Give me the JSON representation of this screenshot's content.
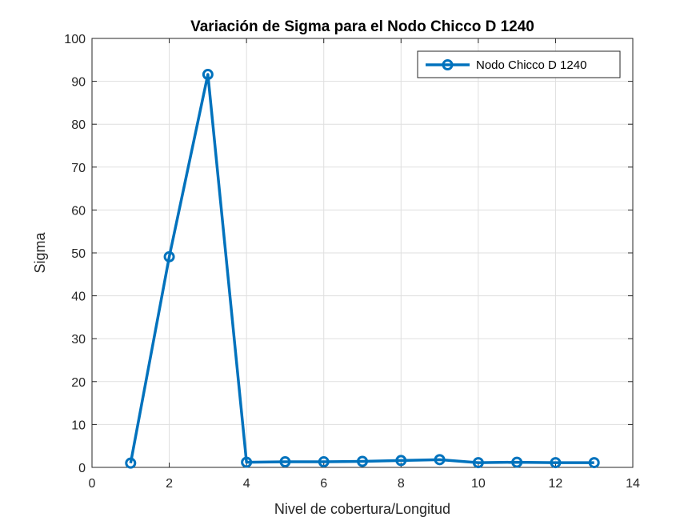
{
  "chart_data": {
    "type": "line",
    "title": "Variación de Sigma para el Nodo Chicco D 1240",
    "xlabel": "Nivel de cobertura/Longitud",
    "ylabel": "Sigma",
    "xlim": [
      0,
      14
    ],
    "ylim": [
      0,
      100
    ],
    "xticks": [
      0,
      2,
      4,
      6,
      8,
      10,
      12,
      14
    ],
    "yticks": [
      0,
      10,
      20,
      30,
      40,
      50,
      60,
      70,
      80,
      90,
      100
    ],
    "grid": true,
    "legend_position": "top-right",
    "series": [
      {
        "name": "Nodo Chicco D 1240",
        "color": "#0072BD",
        "marker": "circle",
        "x": [
          1,
          2,
          3,
          4,
          5,
          6,
          7,
          8,
          9,
          10,
          11,
          12,
          13
        ],
        "y": [
          1.0,
          49.1,
          91.6,
          1.2,
          1.3,
          1.3,
          1.4,
          1.6,
          1.8,
          1.1,
          1.2,
          1.1,
          1.1
        ]
      }
    ]
  }
}
